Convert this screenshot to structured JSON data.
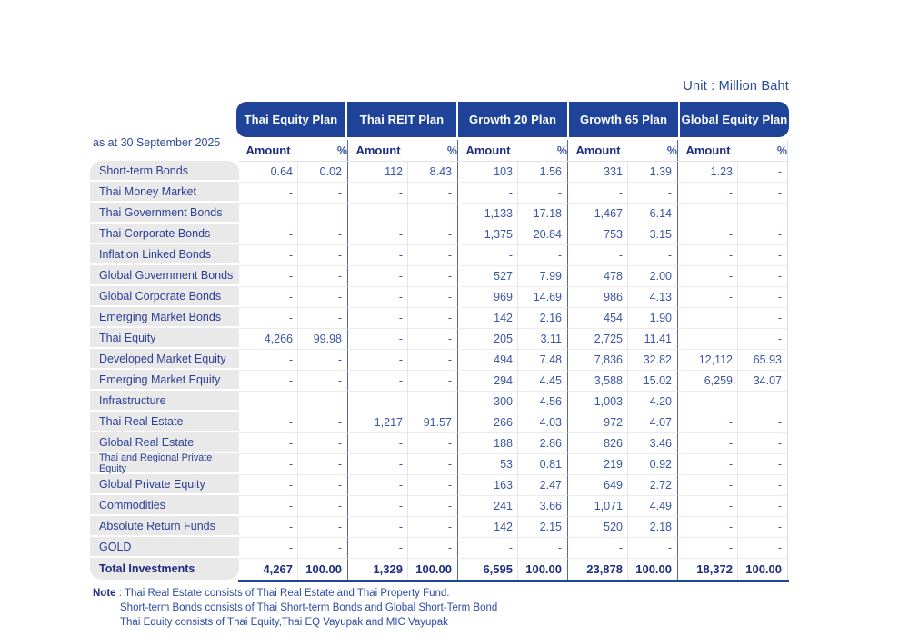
{
  "unit_label": "Unit : Million Baht",
  "as_at_label": "as at 30 September 2025",
  "colors": {
    "header_blue": "#1f4399",
    "data_text_blue": "#3a55a6",
    "dark_navy": "#1c2d7e",
    "label_panel_gray": "#e9e9e9"
  },
  "plans": [
    {
      "name": "Thai Equity Plan"
    },
    {
      "name": "Thai REIT Plan"
    },
    {
      "name": "Growth 20 Plan"
    },
    {
      "name": "Growth 65 Plan"
    },
    {
      "name": "Global Equity Plan"
    }
  ],
  "subheaders": {
    "amount": "Amount",
    "percent": "%"
  },
  "rows": [
    {
      "label": "Short-term Bonds",
      "values": [
        "0.64",
        "0.02",
        "112",
        "8.43",
        "103",
        "1.56",
        "331",
        "1.39",
        "1.23",
        "-"
      ]
    },
    {
      "label": "Thai Money Market",
      "values": [
        "-",
        "-",
        "-",
        "-",
        "-",
        "-",
        "-",
        "-",
        "-",
        "-"
      ]
    },
    {
      "label": "Thai Government Bonds",
      "values": [
        "-",
        "-",
        "-",
        "-",
        "1,133",
        "17.18",
        "1,467",
        "6.14",
        "-",
        "-"
      ]
    },
    {
      "label": "Thai Corporate Bonds",
      "values": [
        "-",
        "-",
        "-",
        "-",
        "1,375",
        "20.84",
        "753",
        "3.15",
        "-",
        "-"
      ]
    },
    {
      "label": "Inflation Linked Bonds",
      "values": [
        "-",
        "-",
        "-",
        "-",
        "-",
        "-",
        "-",
        "-",
        "-",
        "-"
      ]
    },
    {
      "label": "Global Government Bonds",
      "values": [
        "-",
        "-",
        "-",
        "-",
        "527",
        "7.99",
        "478",
        "2.00",
        "-",
        "-"
      ]
    },
    {
      "label": "Global Corporate Bonds",
      "values": [
        "-",
        "-",
        "-",
        "-",
        "969",
        "14.69",
        "986",
        "4.13",
        "-",
        "-"
      ]
    },
    {
      "label": "Emerging Market Bonds",
      "values": [
        "-",
        "-",
        "-",
        "-",
        "142",
        "2.16",
        "454",
        "1.90",
        "",
        "-"
      ]
    },
    {
      "label": "Thai Equity",
      "values": [
        "4,266",
        "99.98",
        "-",
        "-",
        "205",
        "3.11",
        "2,725",
        "11.41",
        "",
        "-"
      ]
    },
    {
      "label": "Developed Market Equity",
      "values": [
        "-",
        "-",
        "-",
        "-",
        "494",
        "7.48",
        "7,836",
        "32.82",
        "12,112",
        "65.93"
      ]
    },
    {
      "label": "Emerging Market Equity",
      "values": [
        "-",
        "-",
        "-",
        "-",
        "294",
        "4.45",
        "3,588",
        "15.02",
        "6,259",
        "34.07"
      ]
    },
    {
      "label": "Infrastructure",
      "values": [
        "-",
        "-",
        "-",
        "-",
        "300",
        "4.56",
        "1,003",
        "4.20",
        "-",
        "-"
      ]
    },
    {
      "label": "Thai Real Estate",
      "values": [
        "-",
        "-",
        "1,217",
        "91.57",
        "266",
        "4.03",
        "972",
        "4.07",
        "-",
        "-"
      ]
    },
    {
      "label": "Global Real Estate",
      "values": [
        "-",
        "-",
        "-",
        "-",
        "188",
        "2.86",
        "826",
        "3.46",
        "-",
        "-"
      ]
    },
    {
      "label": "Thai and Regional Private Equity",
      "small": true,
      "values": [
        "-",
        "-",
        "-",
        "-",
        "53",
        "0.81",
        "219",
        "0.92",
        "-",
        "-"
      ]
    },
    {
      "label": "Global Private Equity",
      "values": [
        "-",
        "-",
        "-",
        "-",
        "163",
        "2.47",
        "649",
        "2.72",
        "-",
        "-"
      ]
    },
    {
      "label": "Commodities",
      "values": [
        "-",
        "-",
        "-",
        "-",
        "241",
        "3.66",
        "1,071",
        "4.49",
        "-",
        "-"
      ]
    },
    {
      "label": "Absolute Return Funds",
      "values": [
        "-",
        "-",
        "-",
        "-",
        "142",
        "2.15",
        "520",
        "2.18",
        "-",
        "-"
      ]
    },
    {
      "label": "GOLD",
      "values": [
        "-",
        "-",
        "-",
        "-",
        "-",
        "-",
        "-",
        "-",
        "-",
        "-"
      ]
    }
  ],
  "total_row": {
    "label": "Total Investments",
    "values": [
      "4,267",
      "100.00",
      "1,329",
      "100.00",
      "6,595",
      "100.00",
      "23,878",
      "100.00",
      "18,372",
      "100.00"
    ]
  },
  "note": {
    "label": "Note",
    "colon": " : ",
    "lines": [
      "Thai Real Estate consists of Thai Real Estate and Thai Property Fund.",
      "Short-term Bonds consists of Thai Short-term Bonds and Global Short-Term Bond",
      "Thai Equity consists of Thai Equity,Thai EQ Vayupak and MIC Vayupak"
    ]
  }
}
